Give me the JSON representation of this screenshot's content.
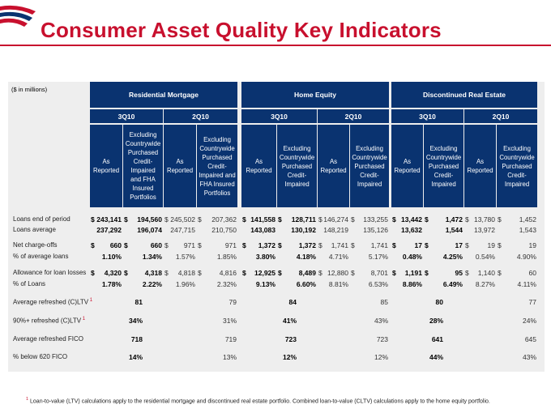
{
  "title": "Consumer Asset Quality Key Indicators",
  "units": "($ in millions)",
  "colors": {
    "accent": "#c8102e",
    "header": "#0a3370",
    "panel": "#eeeeee"
  },
  "groups": [
    "Residential Mortgage",
    "Home Equity",
    "Discontinued Real Estate"
  ],
  "periods": [
    "3Q10",
    "2Q10",
    "3Q10",
    "2Q10",
    "3Q10",
    "2Q10"
  ],
  "col_heads": {
    "as": "As Reported",
    "ex_mort": "Excluding Countrywide Purchased Credit-Impaired and FHA Insured Portfolios",
    "ex_pci": "Excluding Countrywide Purchased Credit-Impaired"
  },
  "rows": [
    {
      "label": "Loans end of period",
      "sup": "",
      "values": [
        "243,141",
        "194,560",
        "245,502",
        "207,362",
        "141,558",
        "128,711",
        "146,274",
        "133,255",
        "13,442",
        "1,472",
        "13,780",
        "1,452"
      ],
      "dollar": true
    },
    {
      "label": "Loans average",
      "sup": "",
      "values": [
        "237,292",
        "196,074",
        "247,715",
        "210,750",
        "143,083",
        "130,192",
        "148,219",
        "135,126",
        "13,632",
        "1,544",
        "13,972",
        "1,543"
      ],
      "dollar": false
    },
    {
      "label": "Net charge-offs",
      "sup": "",
      "values": [
        "660",
        "660",
        "971",
        "971",
        "1,372",
        "1,372",
        "1,741",
        "1,741",
        "17",
        "17",
        "19",
        "19"
      ],
      "dollar": true
    },
    {
      "label": "% of average loans",
      "sup": "",
      "values": [
        "1.10%",
        "1.34%",
        "1.57%",
        "1.85%",
        "3.80%",
        "4.18%",
        "4.71%",
        "5.17%",
        "0.48%",
        "4.25%",
        "0.54%",
        "4.90%"
      ],
      "dollar": false
    },
    {
      "label": "Allowance for loan losses",
      "sup": "",
      "values": [
        "4,320",
        "4,318",
        "4,818",
        "4,816",
        "12,925",
        "8,489",
        "12,880",
        "8,701",
        "1,191",
        "95",
        "1,140",
        "60"
      ],
      "dollar": true
    },
    {
      "label": "% of Loans",
      "sup": "",
      "values": [
        "1.78%",
        "2.22%",
        "1.96%",
        "2.32%",
        "9.13%",
        "6.60%",
        "8.81%",
        "6.53%",
        "8.86%",
        "6.49%",
        "8.27%",
        "4.11%"
      ],
      "dollar": false
    },
    {
      "label": "Average refreshed (C)LTV",
      "sup": "1",
      "values": [
        "81",
        "79",
        "84",
        "85",
        "80",
        "77"
      ],
      "dollar": false
    },
    {
      "label": "90%+ refreshed (C)LTV",
      "sup": "1",
      "values": [
        "34%",
        "31%",
        "41%",
        "43%",
        "28%",
        "24%"
      ],
      "dollar": false
    },
    {
      "label": "Average refreshed FICO",
      "sup": "",
      "values": [
        "718",
        "719",
        "723",
        "723",
        "641",
        "645"
      ],
      "dollar": false
    },
    {
      "label": "% below 620 FICO",
      "sup": "",
      "values": [
        "14%",
        "13%",
        "12%",
        "12%",
        "44%",
        "43%"
      ],
      "dollar": false
    }
  ],
  "dollar_sign": "$",
  "footnote": {
    "sup": "1",
    "text": "Loan-to-value (LTV) calculations apply to the residential mortgage and discontinued real estate portfolio. Combined loan-to-value (CLTV) calculations apply to the home equity portfolio."
  }
}
